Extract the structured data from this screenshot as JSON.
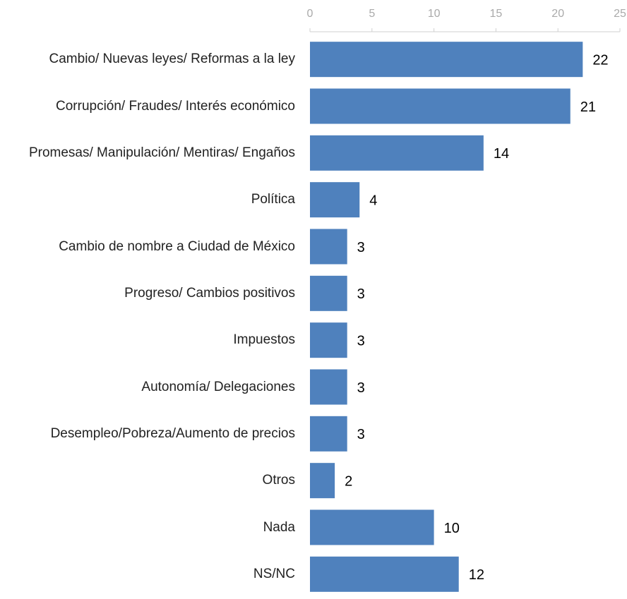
{
  "chart_data": {
    "type": "bar",
    "orientation": "horizontal",
    "categories": [
      "Cambio/ Nuevas leyes/ Reformas a la ley",
      "Corrupción/ Fraudes/ Interés económico",
      "Promesas/ Manipulación/ Mentiras/ Engaños",
      "Política",
      "Cambio de nombre a Ciudad de México",
      "Progreso/ Cambios positivos",
      "Impuestos",
      "Autonomía/ Delegaciones",
      "Desempleo/Pobreza/Aumento de precios",
      "Otros",
      "Nada",
      "NS/NC"
    ],
    "values": [
      22,
      21,
      14,
      4,
      3,
      3,
      3,
      3,
      3,
      2,
      10,
      12
    ],
    "color": "#4f81bd",
    "xlim": [
      0,
      25
    ],
    "xticks": [
      0,
      5,
      10,
      15,
      20,
      25
    ],
    "grid": false
  }
}
